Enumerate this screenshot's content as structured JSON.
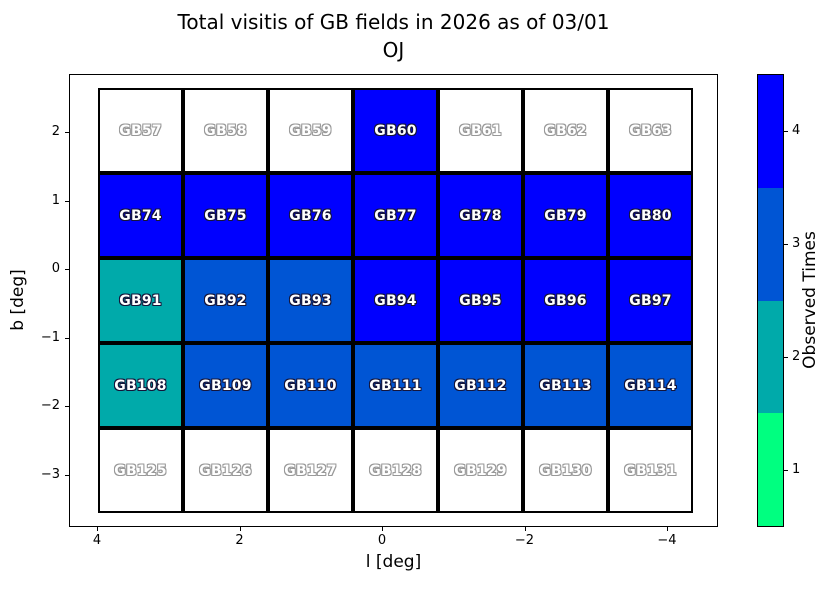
{
  "title": {
    "line1": "Total visitis of GB fields in 2026 as of 03/01",
    "line2": "OJ"
  },
  "axes": {
    "xlabel": "l [deg]",
    "ylabel": "b [deg]",
    "x_ticks": [
      "4",
      "2",
      "0",
      "−2",
      "−4"
    ],
    "y_ticks": [
      "2",
      "1",
      "0",
      "−1",
      "−2",
      "−3"
    ]
  },
  "colorbar": {
    "label": "Observed Times",
    "ticks_top_to_bottom": [
      "4",
      "3",
      "2",
      "1"
    ],
    "segment_colors_top_to_bottom": [
      "#0000ff",
      "#0055d4",
      "#00aaaa",
      "#00ff80"
    ]
  },
  "chart_data": {
    "type": "heatmap",
    "title": "Total visitis of GB fields in 2026 as of 03/01\nOJ",
    "xlabel": "l [deg]",
    "ylabel": "b [deg]",
    "xlim": [
      4.3,
      -4.4
    ],
    "ylim": [
      -3.6,
      2.8
    ],
    "x_axis_inverted": true,
    "legend": "colorbar right, label Observed Times, range 1-4",
    "color_map": {
      "0": "#ffffff",
      "1": "#00ff80",
      "2": "#00aaaa",
      "3": "#0055d4",
      "4": "#0000ff"
    },
    "rows": [
      {
        "fields": [
          "GB57",
          "GB58",
          "GB59",
          "GB60",
          "GB61",
          "GB62",
          "GB63"
        ],
        "visits": [
          0,
          0,
          0,
          4,
          0,
          0,
          0
        ]
      },
      {
        "fields": [
          "GB74",
          "GB75",
          "GB76",
          "GB77",
          "GB78",
          "GB79",
          "GB80"
        ],
        "visits": [
          4,
          4,
          4,
          4,
          4,
          4,
          4
        ]
      },
      {
        "fields": [
          "GB91",
          "GB92",
          "GB93",
          "GB94",
          "GB95",
          "GB96",
          "GB97"
        ],
        "visits": [
          2,
          3,
          3,
          4,
          4,
          4,
          4
        ]
      },
      {
        "fields": [
          "GB108",
          "GB109",
          "GB110",
          "GB111",
          "GB112",
          "GB113",
          "GB114"
        ],
        "visits": [
          2,
          3,
          3,
          3,
          3,
          3,
          3
        ]
      },
      {
        "fields": [
          "GB125",
          "GB126",
          "GB127",
          "GB128",
          "GB129",
          "GB130",
          "GB131"
        ],
        "visits": [
          0,
          0,
          0,
          0,
          0,
          0,
          0
        ]
      }
    ]
  }
}
